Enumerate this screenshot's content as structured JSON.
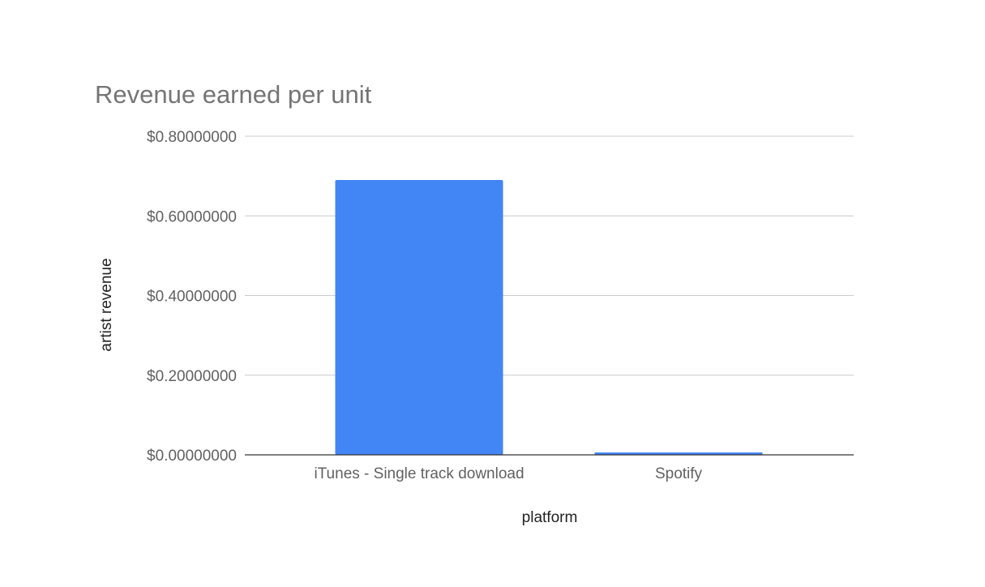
{
  "chart_data": {
    "type": "bar",
    "title": "Revenue earned per unit",
    "xlabel": "platform",
    "ylabel": "artist revenue",
    "categories": [
      "iTunes - Single track download",
      "Spotify"
    ],
    "series": [
      {
        "values": [
          0.69,
          0.006
        ],
        "color": "#4285f4"
      }
    ],
    "ylim": [
      0,
      0.8
    ],
    "yticks": [
      0,
      0.2,
      0.4,
      0.6,
      0.8
    ],
    "ytick_labels": [
      "$0.00000000",
      "$0.20000000",
      "$0.40000000",
      "$0.60000000",
      "$0.80000000"
    ],
    "grid": true,
    "legend": "none"
  }
}
